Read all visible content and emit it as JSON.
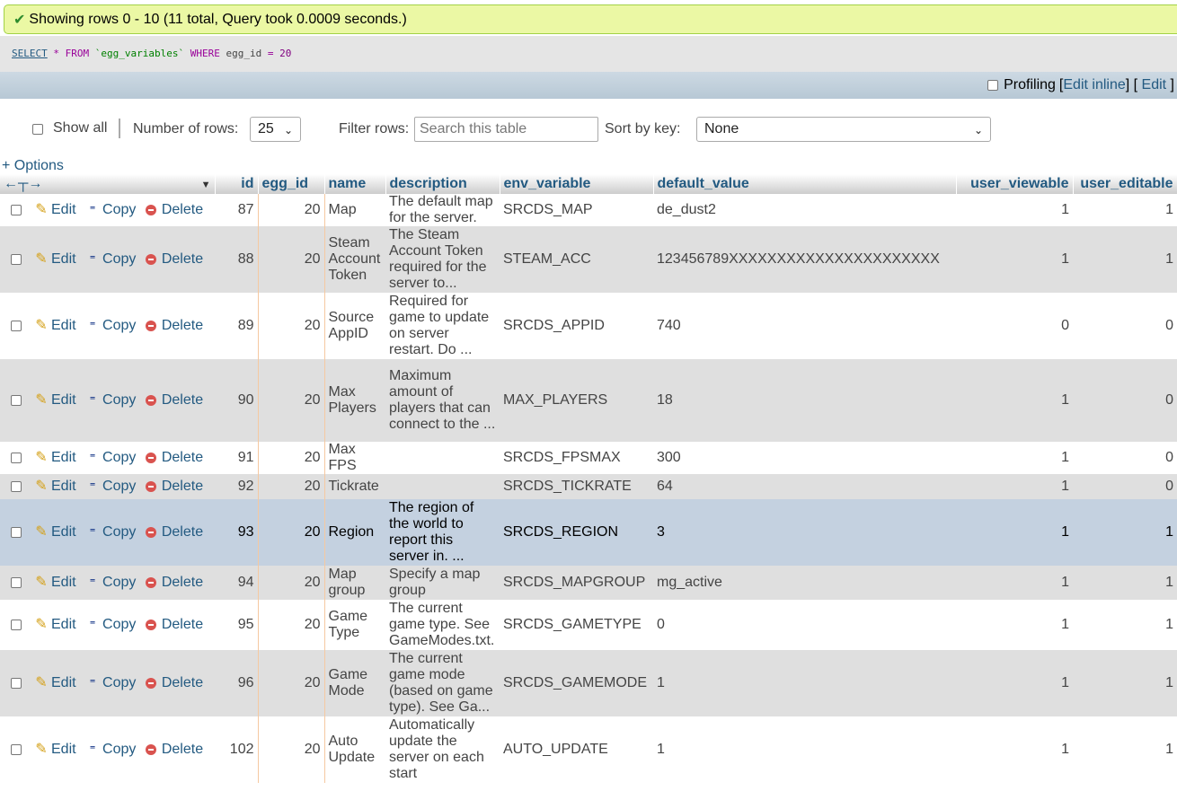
{
  "message": {
    "icon": "check-icon",
    "text": "Showing rows 0 - 10 (11 total, Query took 0.0009 seconds.)"
  },
  "sql": {
    "select": "SELECT",
    "star": "*",
    "from": "FROM",
    "table": "`egg_variables`",
    "where": "WHERE",
    "column": "egg_id",
    "op": "=",
    "value": "20"
  },
  "profiling": {
    "label": "Profiling",
    "edit_inline": "Edit inline",
    "edit": "Edit"
  },
  "nav": {
    "show_all": "Show all",
    "rows_label": "Number of rows:",
    "rows_value": "25",
    "filter_label": "Filter rows:",
    "filter_placeholder": "Search this table",
    "sort_label": "Sort by key:",
    "sort_value": "None"
  },
  "options_link": "+ Options",
  "actions": {
    "edit": "Edit",
    "copy": "Copy",
    "delete": "Delete"
  },
  "columns": [
    "id",
    "egg_id",
    "name",
    "description",
    "env_variable",
    "default_value",
    "user_viewable",
    "user_editable"
  ],
  "rows": [
    {
      "id": "87",
      "egg_id": "20",
      "name": "Map",
      "description": "The default map for the server.",
      "env": "SRCDS_MAP",
      "default": "de_dust2",
      "viewable": "1",
      "editable": "1"
    },
    {
      "id": "88",
      "egg_id": "20",
      "name": "Steam Account Token",
      "description": "The Steam Account Token required for the server to...",
      "env": "STEAM_ACC",
      "default": "123456789XXXXXXXXXXXXXXXXXXXXXX",
      "viewable": "1",
      "editable": "1"
    },
    {
      "id": "89",
      "egg_id": "20",
      "name": "Source AppID",
      "description": "Required for game to update on server restart. Do ...",
      "env": "SRCDS_APPID",
      "default": "740",
      "viewable": "0",
      "editable": "0"
    },
    {
      "id": "90",
      "egg_id": "20",
      "name": "Max Players",
      "description": "Maximum amount of players that can connect to the ...",
      "env": "MAX_PLAYERS",
      "default": "18",
      "viewable": "1",
      "editable": "0"
    },
    {
      "id": "91",
      "egg_id": "20",
      "name": "Max FPS",
      "description": "",
      "env": "SRCDS_FPSMAX",
      "default": "300",
      "viewable": "1",
      "editable": "0"
    },
    {
      "id": "92",
      "egg_id": "20",
      "name": "Tickrate",
      "description": "",
      "env": "SRCDS_TICKRATE",
      "default": "64",
      "viewable": "1",
      "editable": "0"
    },
    {
      "id": "93",
      "egg_id": "20",
      "name": "Region",
      "description": "The region of the world to report this server in. ...",
      "env": "SRCDS_REGION",
      "default": "3",
      "viewable": "1",
      "editable": "1"
    },
    {
      "id": "94",
      "egg_id": "20",
      "name": "Map group",
      "description": "Specify a map group",
      "env": "SRCDS_MAPGROUP",
      "default": "mg_active",
      "viewable": "1",
      "editable": "1"
    },
    {
      "id": "95",
      "egg_id": "20",
      "name": "Game Type",
      "description": "The current game type. See GameModes.txt.",
      "env": "SRCDS_GAMETYPE",
      "default": "0",
      "viewable": "1",
      "editable": "1"
    },
    {
      "id": "96",
      "egg_id": "20",
      "name": "Game Mode",
      "description": "The current game mode (based on game type). See Ga...",
      "env": "SRCDS_GAMEMODE",
      "default": "1",
      "viewable": "1",
      "editable": "1"
    },
    {
      "id": "102",
      "egg_id": "20",
      "name": "Auto Update",
      "description": "Automatically update the server on each start",
      "env": "AUTO_UPDATE",
      "default": "1",
      "viewable": "1",
      "editable": "1"
    }
  ]
}
